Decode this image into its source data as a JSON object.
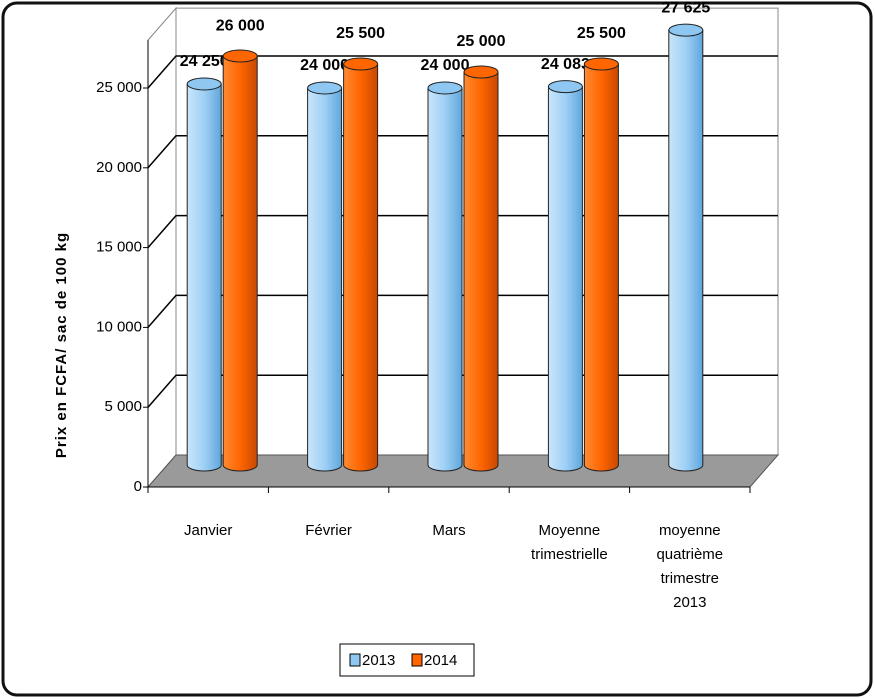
{
  "chart_data": {
    "type": "bar3d",
    "y_label": "Prix en FCFA/ sac de 100 kg",
    "categories": [
      "Janvier",
      "Février",
      "Mars",
      "Moyenne\ntrimestrielle",
      "moyenne\nquatrième\ntrimestre\n2013"
    ],
    "series": [
      {
        "name": "2013",
        "color": "#8ec7f2",
        "values": [
          24250,
          24000,
          24000,
          24083,
          27625
        ],
        "value_labels": [
          "24 250",
          "24 000",
          "24 000",
          "24 083",
          "27 625"
        ]
      },
      {
        "name": "2014",
        "color": "#ff6600",
        "values": [
          26000,
          25500,
          25000,
          25500,
          null
        ],
        "value_labels": [
          "26 000",
          "25 500",
          "25 000",
          "25 500",
          null
        ]
      }
    ],
    "ylim": [
      0,
      28000
    ],
    "yticks": [
      {
        "value": 0,
        "label": "0"
      },
      {
        "value": 5000,
        "label": "5 000"
      },
      {
        "value": 10000,
        "label": "10 000"
      },
      {
        "value": 15000,
        "label": "15 000"
      },
      {
        "value": 20000,
        "label": "20 000"
      },
      {
        "value": 25000,
        "label": "25 000"
      }
    ],
    "grid": true
  }
}
